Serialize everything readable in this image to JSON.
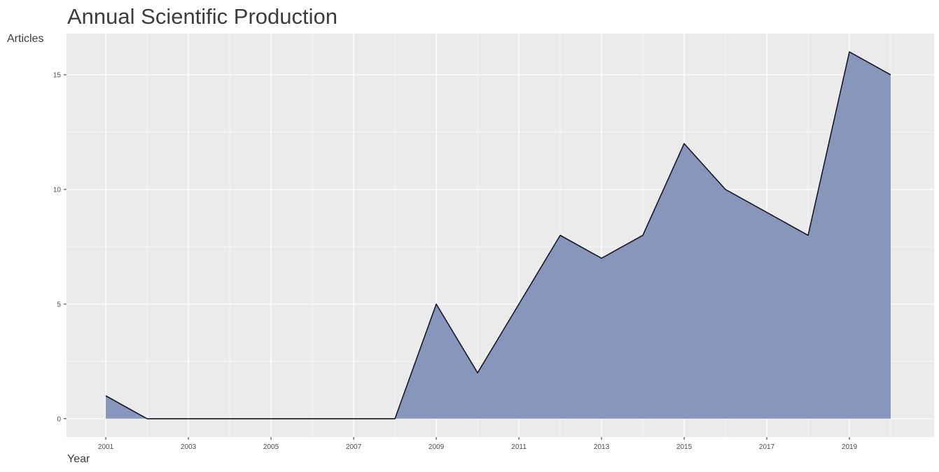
{
  "chart_data": {
    "type": "area",
    "title": "Annual Scientific Production",
    "xlabel": "Year",
    "ylabel": "Articles",
    "x": [
      2001,
      2002,
      2003,
      2004,
      2005,
      2006,
      2007,
      2008,
      2009,
      2010,
      2011,
      2012,
      2013,
      2014,
      2015,
      2016,
      2017,
      2018,
      2019,
      2020
    ],
    "y": [
      1,
      0,
      0,
      0,
      0,
      0,
      0,
      0,
      5,
      2,
      5,
      8,
      7,
      8,
      12,
      10,
      9,
      8,
      16,
      15
    ],
    "xlim": [
      2000.05,
      2021.05
    ],
    "ylim": [
      -0.8,
      16.8
    ],
    "x_ticks": [
      2001,
      2003,
      2005,
      2007,
      2009,
      2011,
      2013,
      2015,
      2017,
      2019
    ],
    "y_ticks": [
      0,
      5,
      10,
      15
    ],
    "grid": true,
    "fill_color": "#8797bb",
    "line_color": "#14182a",
    "panel_color": "#ebebeb",
    "grid_color": "#ffffff"
  }
}
